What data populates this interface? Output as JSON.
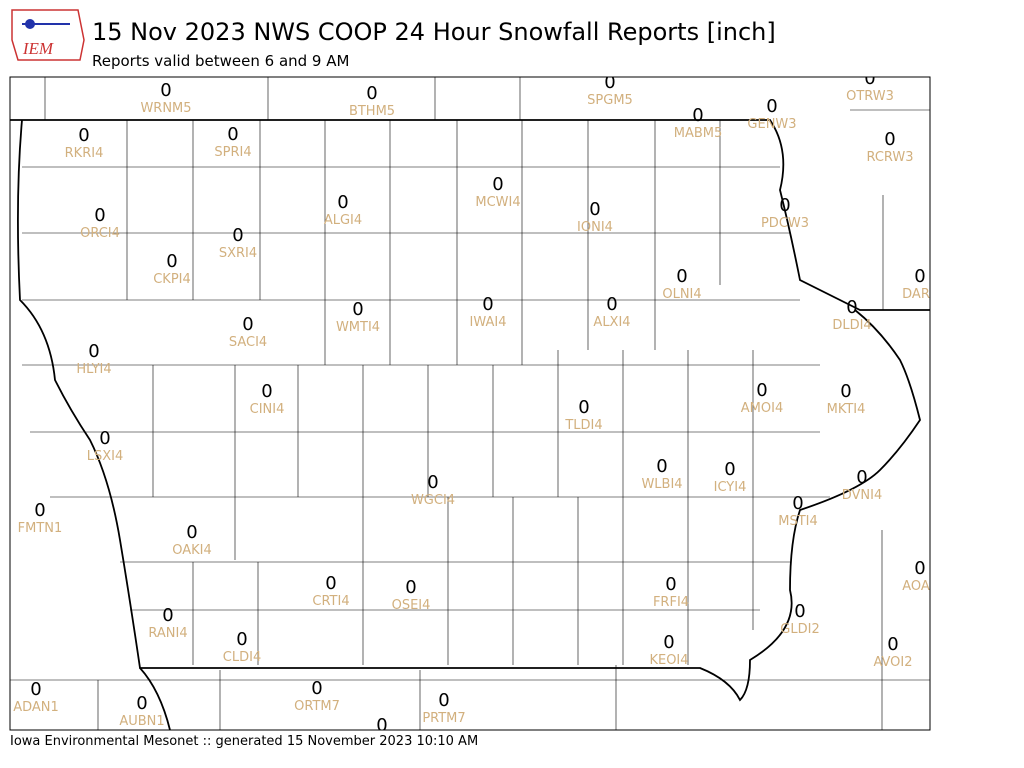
{
  "header": {
    "title": "15 Nov 2023 NWS COOP 24 Hour Snowfall Reports [inch]",
    "subtitle": "Reports valid between 6 and 9 AM",
    "logo_text": "IEM"
  },
  "footer": "Iowa Environmental Mesonet :: generated 15 November 2023 10:10 AM",
  "stations": [
    {
      "id": "WRNM5",
      "value": 0
    },
    {
      "id": "BTHM5",
      "value": 0
    },
    {
      "id": "SPGM5",
      "value": 0
    },
    {
      "id": "OTRW3",
      "value": 0
    },
    {
      "id": "MABM5",
      "value": 0
    },
    {
      "id": "GENW3",
      "value": 0
    },
    {
      "id": "RKRI4",
      "value": 0
    },
    {
      "id": "SPRI4",
      "value": 0
    },
    {
      "id": "RCRW3",
      "value": 0
    },
    {
      "id": "MCWI4",
      "value": 0
    },
    {
      "id": "ALGI4",
      "value": 0
    },
    {
      "id": "IONI4",
      "value": 0
    },
    {
      "id": "ORCI4",
      "value": 0
    },
    {
      "id": "PDCW3",
      "value": 0
    },
    {
      "id": "SXRI4",
      "value": 0
    },
    {
      "id": "CKPI4",
      "value": 0
    },
    {
      "id": "OLNI4",
      "value": 0
    },
    {
      "id": "DAR",
      "value": 0
    },
    {
      "id": "IWAI4",
      "value": 0
    },
    {
      "id": "ALXI4",
      "value": 0
    },
    {
      "id": "WMTI4",
      "value": 0
    },
    {
      "id": "DLDI4",
      "value": 0
    },
    {
      "id": "SACI4",
      "value": 0
    },
    {
      "id": "HLYI4",
      "value": 0
    },
    {
      "id": "AMOI4",
      "value": 0
    },
    {
      "id": "MKTI4",
      "value": 0
    },
    {
      "id": "CINI4",
      "value": 0
    },
    {
      "id": "TLDI4",
      "value": 0
    },
    {
      "id": "LSXI4",
      "value": 0
    },
    {
      "id": "WLBI4",
      "value": 0
    },
    {
      "id": "ICYI4",
      "value": 0
    },
    {
      "id": "WGCI4",
      "value": 0
    },
    {
      "id": "DVNI4",
      "value": 0
    },
    {
      "id": "MSTI4",
      "value": 0
    },
    {
      "id": "FMTN1",
      "value": 0
    },
    {
      "id": "OAKI4",
      "value": 0
    },
    {
      "id": "AOA",
      "value": 0
    },
    {
      "id": "CRTI4",
      "value": 0
    },
    {
      "id": "OSEI4",
      "value": 0
    },
    {
      "id": "FRFI4",
      "value": 0
    },
    {
      "id": "RANI4",
      "value": 0
    },
    {
      "id": "GLDI2",
      "value": 0
    },
    {
      "id": "CLDI4",
      "value": 0
    },
    {
      "id": "KEOI4",
      "value": 0
    },
    {
      "id": "AVOI2",
      "value": 0
    },
    {
      "id": "ADAN1",
      "value": 0
    },
    {
      "id": "ORTM7",
      "value": 0
    },
    {
      "id": "AUBN1",
      "value": 0
    },
    {
      "id": "PRTM7",
      "value": 0
    },
    {
      "id": null,
      "value": 0
    }
  ]
}
